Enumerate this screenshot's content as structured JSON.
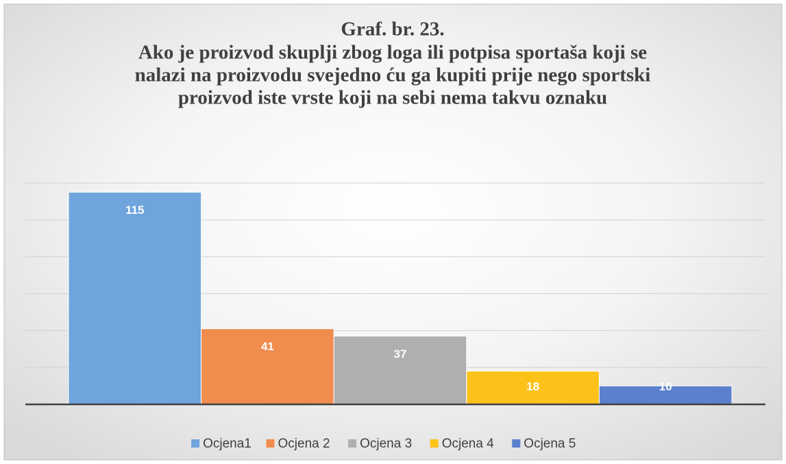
{
  "chart_data": {
    "type": "bar",
    "title": "Graf. br. 23.",
    "subtitle": [
      "Ako je proizvod skuplji zbog loga ili potpisa sportaša koji se",
      "nalazi na proizvodu svejedno ću ga kupiti prije nego sportski",
      "proizvod iste vrste koji na sebi nema takvu oznaku"
    ],
    "categories": [
      null
    ],
    "series": [
      {
        "name": "Ocjena1",
        "color": "#6fa4dc",
        "values": [
          115
        ]
      },
      {
        "name": "Ocjena 2",
        "color": "#ef8c4e",
        "values": [
          41
        ]
      },
      {
        "name": "Ocjena 3",
        "color": "#afafaf",
        "values": [
          37
        ]
      },
      {
        "name": "Ocjena 4",
        "color": "#fdc21a",
        "values": [
          18
        ]
      },
      {
        "name": "Ocjena 5",
        "color": "#5b80cc",
        "values": [
          10
        ]
      }
    ],
    "ylim": [
      0,
      120
    ],
    "yticks": [
      0,
      20,
      40,
      60,
      80,
      100,
      120
    ],
    "grid": true,
    "legend": "bottom"
  }
}
